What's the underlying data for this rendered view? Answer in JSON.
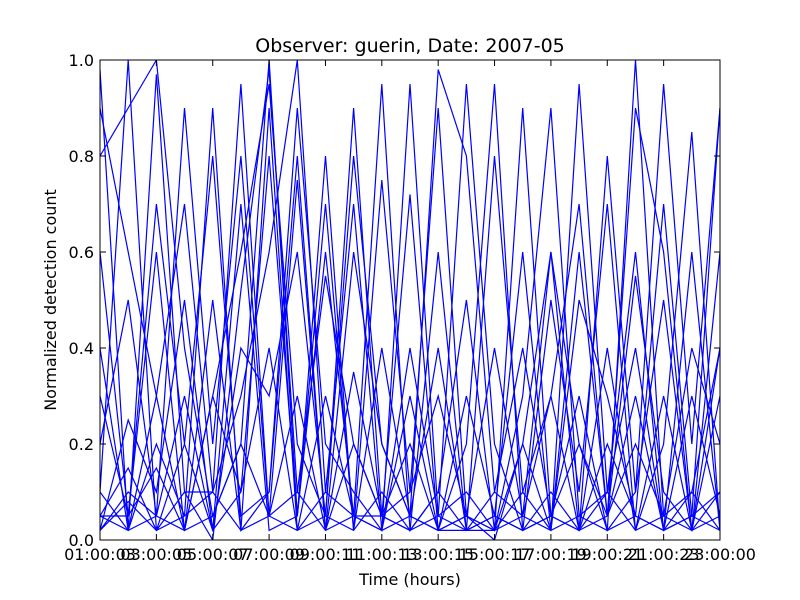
{
  "chart_data": {
    "type": "line",
    "title": "Observer: guerin, Date: 2007-05",
    "xlabel": "Time (hours)",
    "ylabel": "Normalized detection count",
    "ylim": [
      0,
      1
    ],
    "grid": false,
    "line_color": "#0000ff",
    "x_ticks": [
      "01:00:03",
      "03:00:05",
      "05:00:07",
      "07:00:09",
      "09:00:11",
      "11:00:13",
      "13:00:15",
      "15:00:17",
      "17:00:19",
      "19:00:21",
      "21:00:23",
      "23:00:00"
    ],
    "y_ticks": [
      "0.0",
      "0.2",
      "0.4",
      "0.6",
      "0.8",
      "1.0"
    ],
    "x_hours": [
      1,
      2,
      3,
      4,
      5,
      6,
      7,
      8,
      9,
      10,
      11,
      12,
      13,
      14,
      15,
      16,
      17,
      18,
      19,
      20,
      21,
      22,
      23
    ],
    "series": [
      {
        "values": [
          0.98,
          0.02,
          0.97,
          0.1,
          0.0,
          0.52,
          0.98,
          0.1,
          0.55,
          0.2,
          0.05,
          0.72,
          0.02,
          0.3,
          0.05,
          0.6,
          0.02,
          0.95,
          0.1,
          0.4,
          0.02,
          0.3,
          0.05
        ]
      },
      {
        "values": [
          0.8,
          0.9,
          1.0,
          0.4,
          0.05,
          0.2,
          1.0,
          0.05,
          0.8,
          0.02,
          0.75,
          0.1,
          0.9,
          0.05,
          0.0,
          0.2,
          0.6,
          0.02,
          0.8,
          0.1,
          0.95,
          0.2,
          0.9
        ]
      },
      {
        "values": [
          0.05,
          0.02,
          0.3,
          0.7,
          0.1,
          0.3,
          0.6,
          1.0,
          0.1,
          0.7,
          0.02,
          0.4,
          0.05,
          0.95,
          0.2,
          0.02,
          0.5,
          0.1,
          0.7,
          0.02,
          0.2,
          0.85,
          0.02
        ]
      },
      {
        "values": [
          0.2,
          0.5,
          0.05,
          0.9,
          0.2,
          0.8,
          0.05,
          0.75,
          0.02,
          0.6,
          0.2,
          0.05,
          0.4,
          0.02,
          0.8,
          0.1,
          0.3,
          0.7,
          0.05,
          0.55,
          0.1,
          0.02,
          0.6
        ]
      },
      {
        "values": [
          0.02,
          0.1,
          0.05,
          0.02,
          0.5,
          0.02,
          0.9,
          0.02,
          0.3,
          0.05,
          0.95,
          0.02,
          0.1,
          0.5,
          0.02,
          0.9,
          0.05,
          0.2,
          0.02,
          1.0,
          0.05,
          0.4,
          0.2
        ]
      },
      {
        "values": [
          0.6,
          0.05,
          0.7,
          0.2,
          0.02,
          0.4,
          0.3,
          0.6,
          0.05,
          0.9,
          0.05,
          0.2,
          0.02,
          0.05,
          0.4,
          0.05,
          0.02,
          0.5,
          0.3,
          0.05,
          0.7,
          0.05,
          0.1
        ]
      },
      {
        "values": [
          0.1,
          1.0,
          0.02,
          0.2,
          0.8,
          0.05,
          0.1,
          0.9,
          0.2,
          0.1,
          0.02,
          0.95,
          0.05,
          0.1,
          0.02,
          0.3,
          0.9,
          0.05,
          0.1,
          0.6,
          0.02,
          0.05,
          0.9
        ]
      },
      {
        "values": [
          0.05,
          0.15,
          0.02,
          0.05,
          0.1,
          0.95,
          0.05,
          0.3,
          0.02,
          0.35,
          0.05,
          0.02,
          0.6,
          0.02,
          0.05,
          0.02,
          0.1,
          0.02,
          0.4,
          0.02,
          0.3,
          0.02,
          0.05
        ]
      },
      {
        "values": [
          0.3,
          0.05,
          0.6,
          0.02,
          0.3,
          0.1,
          0.8,
          0.05,
          0.7,
          0.02,
          0.4,
          0.05,
          0.02,
          0.2,
          0.95,
          0.02,
          0.05,
          0.3,
          0.02,
          0.1,
          0.5,
          0.02,
          0.3
        ]
      },
      {
        "values": [
          0.02,
          0.25,
          0.1,
          0.5,
          0.02,
          0.7,
          0.02,
          0.05,
          0.6,
          0.05,
          0.02,
          0.3,
          0.02,
          0.02,
          0.1,
          0.4,
          0.05,
          0.02,
          0.2,
          0.05,
          0.02,
          0.6,
          0.02
        ]
      },
      {
        "values": [
          0.4,
          0.02,
          0.2,
          0.05,
          0.9,
          0.02,
          0.1,
          0.8,
          0.02,
          0.2,
          0.05,
          0.1,
          0.3,
          0.05,
          0.02,
          0.2,
          0.02,
          0.6,
          0.05,
          0.2,
          0.05,
          0.1,
          0.4
        ]
      },
      {
        "values": [
          0.1,
          0.02,
          0.05,
          0.3,
          0.02,
          0.1,
          0.4,
          0.02,
          0.05,
          0.02,
          0.1,
          0.02,
          0.05,
          0.02,
          0.02,
          0.05,
          0.3,
          0.02,
          0.05,
          0.3,
          0.02,
          0.05,
          0.02
        ]
      },
      {
        "values": [
          0.05,
          0.05,
          0.15,
          0.02,
          0.05,
          0.2,
          0.05,
          0.1,
          0.02,
          0.05,
          0.05,
          0.02,
          0.1,
          0.02,
          0.05,
          0.02,
          0.05,
          0.02,
          0.1,
          0.02,
          0.05,
          0.02,
          0.1
        ]
      },
      {
        "values": [
          0.02,
          0.08,
          0.02,
          0.1,
          0.1,
          0.02,
          0.05,
          0.02,
          0.1,
          0.05,
          0.02,
          0.05,
          0.02,
          0.05,
          0.02,
          0.1,
          0.02,
          0.05,
          0.02,
          0.05,
          0.02,
          0.1,
          0.02
        ]
      },
      {
        "values": [
          0.9,
          0.6,
          0.3,
          0.02,
          0.3,
          0.6,
          0.95,
          0.2,
          0.05,
          0.8,
          0.2,
          0.05,
          0.98,
          0.8,
          0.1,
          0.05,
          0.6,
          0.2,
          0.05,
          0.9,
          0.6,
          0.02,
          0.4
        ]
      }
    ]
  }
}
